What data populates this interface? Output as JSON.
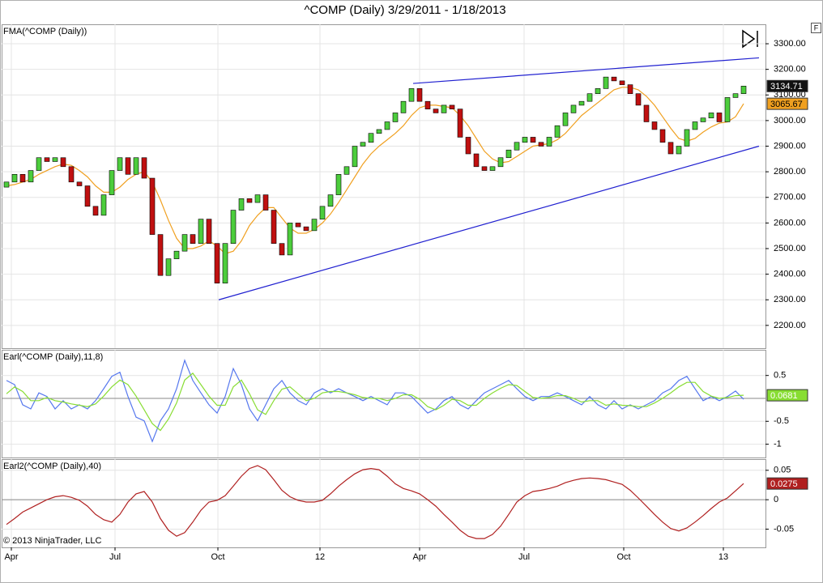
{
  "chart_data": [
    {
      "type": "candlestick",
      "title": "^COMP (Daily)  3/29/2011 - 1/18/2013",
      "label": "FMA(^COMP (Daily))",
      "corner_label": "F",
      "x": [
        0,
        5,
        10,
        15,
        20,
        25,
        30,
        35,
        40,
        45,
        50,
        55,
        60,
        65,
        70,
        75,
        80,
        85,
        90,
        95,
        100,
        105,
        110,
        115,
        120,
        125,
        130,
        135,
        140,
        145,
        150,
        155,
        160,
        165,
        170,
        175,
        180,
        185,
        190,
        195,
        200,
        205,
        210,
        215,
        220,
        225,
        230,
        235,
        240,
        245,
        250,
        255,
        260,
        265,
        270,
        275,
        280,
        285,
        290,
        295,
        300,
        305,
        310,
        315,
        320,
        325,
        330,
        335,
        340,
        345,
        350,
        355,
        360,
        365,
        370,
        375,
        380,
        385,
        390,
        395,
        400,
        405,
        410,
        415,
        420,
        425,
        430,
        435,
        440,
        445,
        450,
        455
      ],
      "open": [
        2740,
        2760,
        2790,
        2760,
        2805,
        2855,
        2840,
        2855,
        2820,
        2760,
        2745,
        2665,
        2630,
        2710,
        2805,
        2855,
        2790,
        2855,
        2775,
        2555,
        2395,
        2460,
        2490,
        2555,
        2520,
        2615,
        2520,
        2365,
        2520,
        2650,
        2695,
        2680,
        2710,
        2650,
        2520,
        2475,
        2600,
        2585,
        2570,
        2615,
        2665,
        2710,
        2790,
        2820,
        2900,
        2915,
        2950,
        2965,
        2995,
        3030,
        3075,
        3125,
        3075,
        3045,
        3030,
        3060,
        3045,
        2935,
        2870,
        2820,
        2805,
        2820,
        2855,
        2885,
        2915,
        2935,
        2915,
        2900,
        2935,
        2980,
        3030,
        3060,
        3075,
        3105,
        3125,
        3170,
        3155,
        3140,
        3105,
        3060,
        2995,
        2965,
        2915,
        2870,
        2900,
        2965,
        2995,
        3010,
        3030,
        2995,
        3090,
        3105
      ],
      "close": [
        2760,
        2790,
        2760,
        2805,
        2855,
        2840,
        2855,
        2820,
        2760,
        2745,
        2665,
        2630,
        2710,
        2805,
        2855,
        2790,
        2855,
        2775,
        2555,
        2395,
        2460,
        2490,
        2555,
        2520,
        2615,
        2520,
        2365,
        2520,
        2650,
        2695,
        2680,
        2710,
        2650,
        2520,
        2475,
        2600,
        2585,
        2570,
        2615,
        2665,
        2710,
        2790,
        2820,
        2900,
        2915,
        2950,
        2965,
        2995,
        3030,
        3075,
        3125,
        3075,
        3045,
        3030,
        3060,
        3045,
        2935,
        2870,
        2820,
        2805,
        2820,
        2855,
        2885,
        2915,
        2935,
        2915,
        2900,
        2935,
        2980,
        3030,
        3060,
        3075,
        3105,
        3125,
        3170,
        3155,
        3140,
        3105,
        3060,
        2995,
        2965,
        2915,
        2870,
        2900,
        2965,
        2995,
        3010,
        3030,
        2995,
        3090,
        3105,
        3134.71
      ],
      "up_color": "#4ccd3c",
      "down_color": "#c01010",
      "series": [
        {
          "color": "#f0a020",
          "values": [
            2745,
            2750,
            2760,
            2770,
            2790,
            2805,
            2820,
            2830,
            2825,
            2805,
            2780,
            2745,
            2720,
            2720,
            2740,
            2770,
            2790,
            2800,
            2760,
            2690,
            2610,
            2540,
            2500,
            2500,
            2510,
            2530,
            2510,
            2480,
            2490,
            2530,
            2590,
            2630,
            2660,
            2660,
            2620,
            2580,
            2560,
            2560,
            2575,
            2600,
            2635,
            2680,
            2730,
            2780,
            2830,
            2870,
            2900,
            2925,
            2950,
            2980,
            3020,
            3050,
            3060,
            3060,
            3055,
            3050,
            3020,
            2980,
            2930,
            2880,
            2850,
            2835,
            2840,
            2860,
            2880,
            2900,
            2905,
            2910,
            2925,
            2950,
            2985,
            3020,
            3045,
            3070,
            3095,
            3120,
            3130,
            3130,
            3120,
            3095,
            3060,
            3015,
            2970,
            2930,
            2920,
            2930,
            2955,
            2975,
            2990,
            2995,
            3015,
            3065.67
          ]
        }
      ],
      "trend_lines": [
        {
          "color": "#2020d0",
          "x": [
            131,
            464.5
          ],
          "y": [
            2300,
            2900
          ]
        },
        {
          "color": "#2020d0",
          "x": [
            251,
            464.5
          ],
          "y": [
            3145,
            3245
          ]
        }
      ],
      "ylim": [
        2111,
        3376
      ],
      "yticks": [
        {
          "value": 2200,
          "label": "2200.00"
        },
        {
          "value": 2300,
          "label": "2300.00"
        },
        {
          "value": 2400,
          "label": "2400.00"
        },
        {
          "value": 2500,
          "label": "2500.00"
        },
        {
          "value": 2600,
          "label": "2600.00"
        },
        {
          "value": 2700,
          "label": "2700.00"
        },
        {
          "value": 2800,
          "label": "2800.00"
        },
        {
          "value": 2900,
          "label": "2900.00"
        },
        {
          "value": 3000,
          "label": "3000.00"
        },
        {
          "value": 3100,
          "label": "3100.00"
        },
        {
          "value": 3200,
          "label": "3200.00"
        },
        {
          "value": 3300,
          "label": "3300.00"
        }
      ],
      "grid": true
    },
    {
      "type": "line",
      "label": "Earl(^COMP (Daily),11,8)",
      "x": [
        0,
        5,
        10,
        15,
        20,
        25,
        30,
        35,
        40,
        45,
        50,
        55,
        60,
        65,
        70,
        75,
        80,
        85,
        90,
        95,
        100,
        105,
        110,
        115,
        120,
        125,
        130,
        135,
        140,
        145,
        150,
        155,
        160,
        165,
        170,
        175,
        180,
        185,
        190,
        195,
        200,
        205,
        210,
        215,
        220,
        225,
        230,
        235,
        240,
        245,
        250,
        255,
        260,
        265,
        270,
        275,
        280,
        285,
        290,
        295,
        300,
        305,
        310,
        315,
        320,
        325,
        330,
        335,
        340,
        345,
        350,
        355,
        360,
        365,
        370,
        375,
        380,
        385,
        390,
        395,
        400,
        405,
        410,
        415,
        420,
        425,
        430,
        435,
        440,
        445,
        450,
        455
      ],
      "series": [
        {
          "color": "#5577ee",
          "values": [
            0.39,
            0.3,
            -0.14,
            -0.23,
            0.12,
            0.04,
            -0.23,
            -0.05,
            -0.23,
            -0.14,
            -0.23,
            -0.05,
            0.21,
            0.48,
            0.57,
            0.04,
            -0.41,
            -0.49,
            -0.94,
            -0.49,
            -0.23,
            0.21,
            0.83,
            0.39,
            0.12,
            -0.14,
            -0.32,
            0.04,
            0.65,
            0.3,
            -0.23,
            -0.49,
            -0.14,
            0.21,
            0.39,
            0.12,
            -0.05,
            -0.14,
            0.12,
            0.21,
            0.12,
            0.21,
            0.12,
            0.04,
            -0.05,
            0.04,
            -0.05,
            -0.14,
            0.12,
            0.12,
            0.04,
            -0.14,
            -0.32,
            -0.23,
            -0.05,
            0.04,
            -0.14,
            -0.23,
            -0.05,
            0.12,
            0.21,
            0.3,
            0.39,
            0.21,
            0.04,
            -0.05,
            0.04,
            0.04,
            0.12,
            0.04,
            -0.05,
            -0.14,
            0.04,
            -0.14,
            -0.23,
            -0.05,
            -0.23,
            -0.14,
            -0.23,
            -0.14,
            -0.05,
            0.12,
            0.21,
            0.39,
            0.48,
            0.21,
            -0.05,
            0.04,
            -0.05,
            0.04,
            0.16,
            -0.02
          ]
        },
        {
          "color": "#88dd33",
          "values": [
            0.1,
            0.25,
            0.15,
            -0.05,
            -0.05,
            0.02,
            -0.05,
            -0.08,
            -0.12,
            -0.15,
            -0.18,
            -0.12,
            0.05,
            0.25,
            0.4,
            0.3,
            0.05,
            -0.25,
            -0.55,
            -0.7,
            -0.45,
            -0.1,
            0.4,
            0.55,
            0.3,
            0.05,
            -0.15,
            -0.15,
            0.25,
            0.4,
            0.1,
            -0.25,
            -0.35,
            -0.05,
            0.2,
            0.25,
            0.1,
            -0.05,
            0.0,
            0.12,
            0.15,
            0.15,
            0.12,
            0.08,
            0.02,
            0.0,
            0.0,
            -0.05,
            0.0,
            0.08,
            0.08,
            -0.02,
            -0.18,
            -0.25,
            -0.15,
            -0.02,
            -0.05,
            -0.15,
            -0.15,
            0.0,
            0.12,
            0.22,
            0.3,
            0.28,
            0.15,
            0.02,
            0.0,
            0.02,
            0.06,
            0.06,
            0.0,
            -0.08,
            -0.05,
            -0.05,
            -0.15,
            -0.12,
            -0.15,
            -0.16,
            -0.18,
            -0.18,
            -0.1,
            0.0,
            0.12,
            0.25,
            0.35,
            0.35,
            0.15,
            0.05,
            0.0,
            0.02,
            0.06,
            0.0681
          ]
        }
      ],
      "ylim": [
        -1.29,
        1.06
      ],
      "yticks": [
        0.5,
        -0.5,
        -1
      ],
      "hline": 0,
      "grid": true
    },
    {
      "type": "line",
      "label": "Earl2(^COMP (Daily),40)",
      "copyright": "© 2013 NinjaTrader, LLC",
      "x": [
        0,
        5,
        10,
        15,
        20,
        25,
        30,
        35,
        40,
        45,
        50,
        55,
        60,
        65,
        70,
        75,
        80,
        85,
        90,
        95,
        100,
        105,
        110,
        115,
        120,
        125,
        130,
        135,
        140,
        145,
        150,
        155,
        160,
        165,
        170,
        175,
        180,
        185,
        190,
        195,
        200,
        205,
        210,
        215,
        220,
        225,
        230,
        235,
        240,
        245,
        250,
        255,
        260,
        265,
        270,
        275,
        280,
        285,
        290,
        295,
        300,
        305,
        310,
        315,
        320,
        325,
        330,
        335,
        340,
        345,
        350,
        355,
        360,
        365,
        370,
        375,
        380,
        385,
        390,
        395,
        400,
        405,
        410,
        415,
        420,
        425,
        430,
        435,
        440,
        445,
        450,
        455
      ],
      "series": [
        {
          "color": "#b02020",
          "values": [
            -0.042,
            -0.032,
            -0.021,
            -0.014,
            -0.007,
            0,
            0.005,
            0.007,
            0.004,
            -0.001,
            -0.011,
            -0.025,
            -0.034,
            -0.038,
            -0.025,
            -0.004,
            0.01,
            0.014,
            -0.004,
            -0.032,
            -0.052,
            -0.062,
            -0.056,
            -0.038,
            -0.018,
            -0.004,
            -0.001,
            0.007,
            0.023,
            0.04,
            0.053,
            0.058,
            0.051,
            0.034,
            0.016,
            0.005,
            -0.001,
            -0.004,
            -0.004,
            -0.001,
            0.01,
            0.023,
            0.034,
            0.044,
            0.051,
            0.053,
            0.051,
            0.04,
            0.027,
            0.019,
            0.015,
            0.01,
            0,
            -0.011,
            -0.025,
            -0.038,
            -0.052,
            -0.062,
            -0.066,
            -0.066,
            -0.059,
            -0.045,
            -0.025,
            -0.004,
            0.007,
            0.014,
            0.016,
            0.019,
            0.023,
            0.029,
            0.033,
            0.036,
            0.037,
            0.036,
            0.034,
            0.03,
            0.026,
            0.016,
            0.003,
            -0.011,
            -0.025,
            -0.038,
            -0.049,
            -0.053,
            -0.048,
            -0.038,
            -0.027,
            -0.015,
            -0.004,
            0.003,
            0.015,
            0.0275
          ]
        }
      ],
      "ylim": [
        -0.081,
        0.069
      ],
      "yticks": [
        0.05,
        0,
        -0.05
      ],
      "hline": 0,
      "grid": true,
      "xlim": [
        -3,
        468.5
      ],
      "xticks": [
        {
          "value": 3,
          "label": "Apr"
        },
        {
          "value": 67,
          "label": "Jul"
        },
        {
          "value": 130.5,
          "label": "Oct"
        },
        {
          "value": 193.5,
          "label": "12"
        },
        {
          "value": 255,
          "label": "Apr"
        },
        {
          "value": 319.5,
          "label": "Jul"
        },
        {
          "value": 381,
          "label": "Oct"
        },
        {
          "value": 442.5,
          "label": "13"
        }
      ]
    }
  ]
}
